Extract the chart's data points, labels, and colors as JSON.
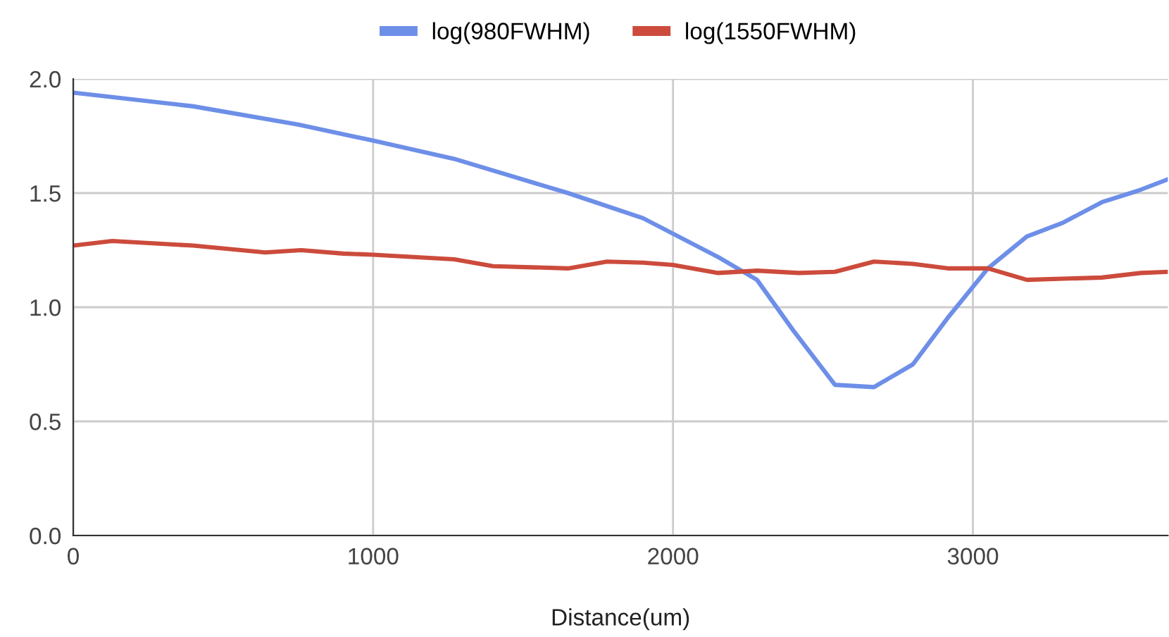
{
  "chart_data": {
    "type": "line",
    "xlabel": "Distance(um)",
    "legend": "top",
    "grid": true,
    "xlim": [
      0,
      3650
    ],
    "xticks": [
      0,
      1000,
      2000,
      3000
    ],
    "ylim": [
      0,
      2.0
    ],
    "yticks": [
      {
        "value": 0,
        "label": "0.0"
      },
      {
        "value": 0.5,
        "label": "0.5"
      },
      {
        "value": 1.0,
        "label": "1.0"
      },
      {
        "value": 1.5,
        "label": "1.5"
      },
      {
        "value": 2.0,
        "label": "2.0"
      }
    ],
    "series": [
      {
        "name": "log(980FWHM)",
        "color": "#6d8fe8",
        "x": [
          0,
          400,
          750,
          1000,
          1270,
          1650,
          1900,
          2150,
          2280,
          2400,
          2540,
          2670,
          2800,
          2920,
          3050,
          3180,
          3300,
          3430,
          3550,
          3650
        ],
        "values": [
          1.94,
          1.88,
          1.8,
          1.73,
          1.65,
          1.5,
          1.39,
          1.22,
          1.12,
          0.9,
          0.66,
          0.65,
          0.75,
          0.96,
          1.17,
          1.31,
          1.37,
          1.46,
          1.51,
          1.56
        ]
      },
      {
        "name": "log(1550FWHM)",
        "color": "#cc4b3c",
        "x": [
          0,
          130,
          400,
          640,
          760,
          900,
          1000,
          1270,
          1400,
          1650,
          1780,
          1900,
          2000,
          2150,
          2280,
          2420,
          2540,
          2670,
          2800,
          2920,
          3050,
          3180,
          3300,
          3430,
          3560,
          3650
        ],
        "values": [
          1.27,
          1.29,
          1.27,
          1.24,
          1.25,
          1.235,
          1.23,
          1.21,
          1.18,
          1.17,
          1.2,
          1.195,
          1.185,
          1.15,
          1.16,
          1.15,
          1.155,
          1.2,
          1.19,
          1.17,
          1.17,
          1.12,
          1.125,
          1.13,
          1.15,
          1.155
        ]
      }
    ]
  }
}
